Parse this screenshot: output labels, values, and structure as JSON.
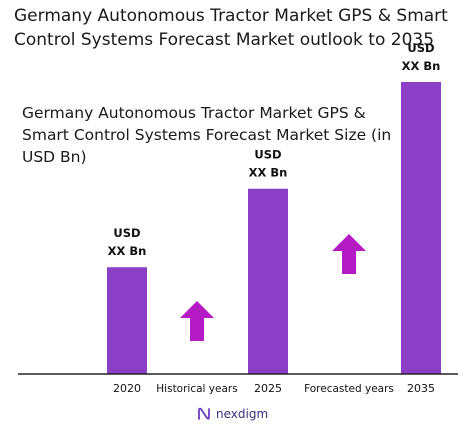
{
  "header": {
    "title": "Germany Autonomous Tractor Market GPS & Smart Control Systems Forecast Market outlook to 2035"
  },
  "chart_data": {
    "type": "bar",
    "title": "Germany Autonomous Tractor Market GPS & Smart Control Systems Forecast Market Size (in USD Bn)",
    "categories": [
      "2020",
      "2025",
      "2035"
    ],
    "values": [
      3.4,
      5.9,
      9.3
    ],
    "data_labels": [
      [
        "USD",
        "XX Bn"
      ],
      [
        "USD",
        "XX Bn"
      ],
      [
        "USD",
        "XX Bn"
      ]
    ],
    "notes": [
      "Historical years",
      "Forecasted years"
    ],
    "ylim": [
      0,
      10
    ],
    "grid": false,
    "colors": {
      "bar": "#8B3FC6",
      "arrow": "#B51BC4",
      "axis": "#222222"
    }
  },
  "brand": {
    "logo_text": "nexdigm",
    "logo_icon": "nexdigm-n-icon"
  }
}
